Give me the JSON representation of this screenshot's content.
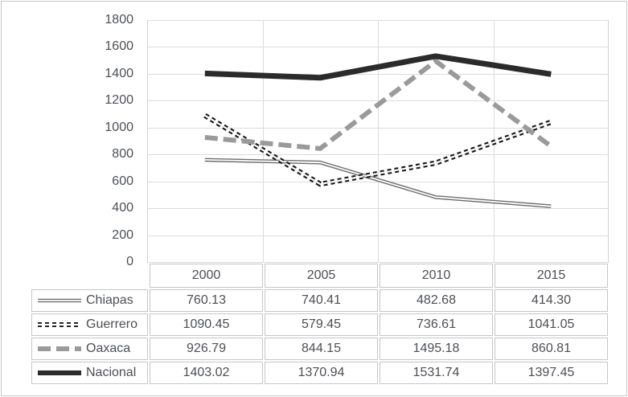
{
  "chart_data": {
    "type": "line",
    "title": "",
    "xlabel": "",
    "ylabel": "",
    "categories": [
      "2000",
      "2005",
      "2010",
      "2015"
    ],
    "series": [
      {
        "name": "Chiapas",
        "values": [
          760.13,
          740.41,
          482.68,
          414.3
        ],
        "color": "#6d6d6d",
        "style": "double-solid"
      },
      {
        "name": "Guerrero",
        "values": [
          1090.45,
          579.45,
          736.61,
          1041.05
        ],
        "color": "#161616",
        "style": "double-dash"
      },
      {
        "name": "Oaxaca",
        "values": [
          926.79,
          844.15,
          1495.18,
          860.81
        ],
        "color": "#9a9a9a",
        "style": "thick-dash"
      },
      {
        "name": "Nacional",
        "values": [
          1403.02,
          1370.94,
          1531.74,
          1397.45
        ],
        "color": "#2b2b2b",
        "style": "thick-solid"
      }
    ],
    "table_values": [
      [
        "760.13",
        "740.41",
        "482.68",
        "414.30"
      ],
      [
        "1090.45",
        "579.45",
        "736.61",
        "1041.05"
      ],
      [
        "926.79",
        "844.15",
        "1495.18",
        "860.81"
      ],
      [
        "1403.02",
        "1370.94",
        "1531.74",
        "1397.45"
      ]
    ],
    "ylim": [
      0,
      1800
    ],
    "ytick_step": 200,
    "yticks": [
      1800,
      1600,
      1400,
      1200,
      1000,
      800,
      600,
      400,
      200,
      0
    ],
    "grid": true,
    "legend_position": "table-left-column"
  },
  "colors": {
    "background": "#ffffff",
    "figure_border": "#c8c8c8",
    "gridline": "#dcdcdc",
    "plot_border": "#d2d2d2",
    "table_border": "#c6c6c6",
    "text": "#4c4f54",
    "double_line_gap": "#ffffff"
  }
}
